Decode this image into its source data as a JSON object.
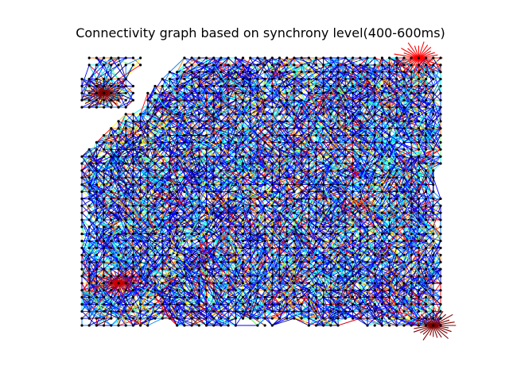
{
  "figure": {
    "title": "Connectivity graph based on synchrony level(400-600ms)"
  },
  "graph": {
    "grid_columns": 50,
    "grid_rows": 38,
    "node_color": "#000000",
    "background": "#ffffff",
    "colormap": [
      "#00007f",
      "#0000ff",
      "#0080ff",
      "#00ffff",
      "#80ff80",
      "#ffff00",
      "#ff8000",
      "#ff0000",
      "#7f0000"
    ],
    "edges_per_node": 7,
    "hubs": [
      {
        "col": 3,
        "row": 5,
        "color": "#7f0000"
      },
      {
        "col": 5,
        "row": 32,
        "color": "#cc0000"
      },
      {
        "col": 48,
        "row": 38,
        "color": "#7f0000"
      },
      {
        "col": 46,
        "row": 0,
        "color": "#ff0000"
      }
    ]
  }
}
